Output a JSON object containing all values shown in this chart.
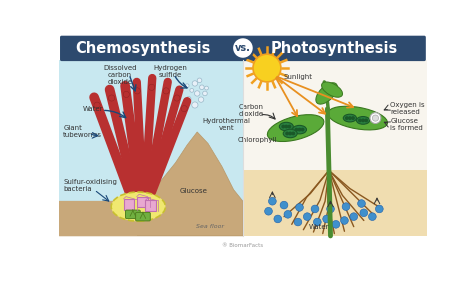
{
  "title_left": "Chemosynthesis",
  "title_vs": "vs.",
  "title_right": "Photosynthesis",
  "header_bg": "#2d4a6e",
  "header_text_color": "#ffffff",
  "vs_circle_bg": "#ffffff",
  "vs_text_color": "#2d4a6e",
  "bg_color": "#ffffff",
  "left_water_bg": "#c8e8f0",
  "seafloor_color": "#c8a87a",
  "seafloor_dark": "#b89868",
  "worm_red": "#b83030",
  "bacteria_yellow": "#f0e870",
  "bacteria_border": "#c8c030",
  "pink_cube": "#e8a8d0",
  "green_rod": "#70b040",
  "bubble_color": "#e8f0f8",
  "arrow_dark_blue": "#1a4878",
  "right_sky_bg": "#f5f0e8",
  "right_soil_bg": "#f0ddb0",
  "sun_yellow": "#f8d020",
  "sun_orange": "#f0a020",
  "stem_green": "#4a8c30",
  "leaf_green": "#5aaa38",
  "leaf_dark": "#3a7820",
  "chloro_green": "#2a8040",
  "chloro_dark": "#1a5828",
  "root_brown": "#8a5820",
  "water_dot": "#4090cc",
  "arrow_orange": "#e89020",
  "arrow_black": "#333333",
  "label_color": "#333333",
  "footer_color": "#999999"
}
